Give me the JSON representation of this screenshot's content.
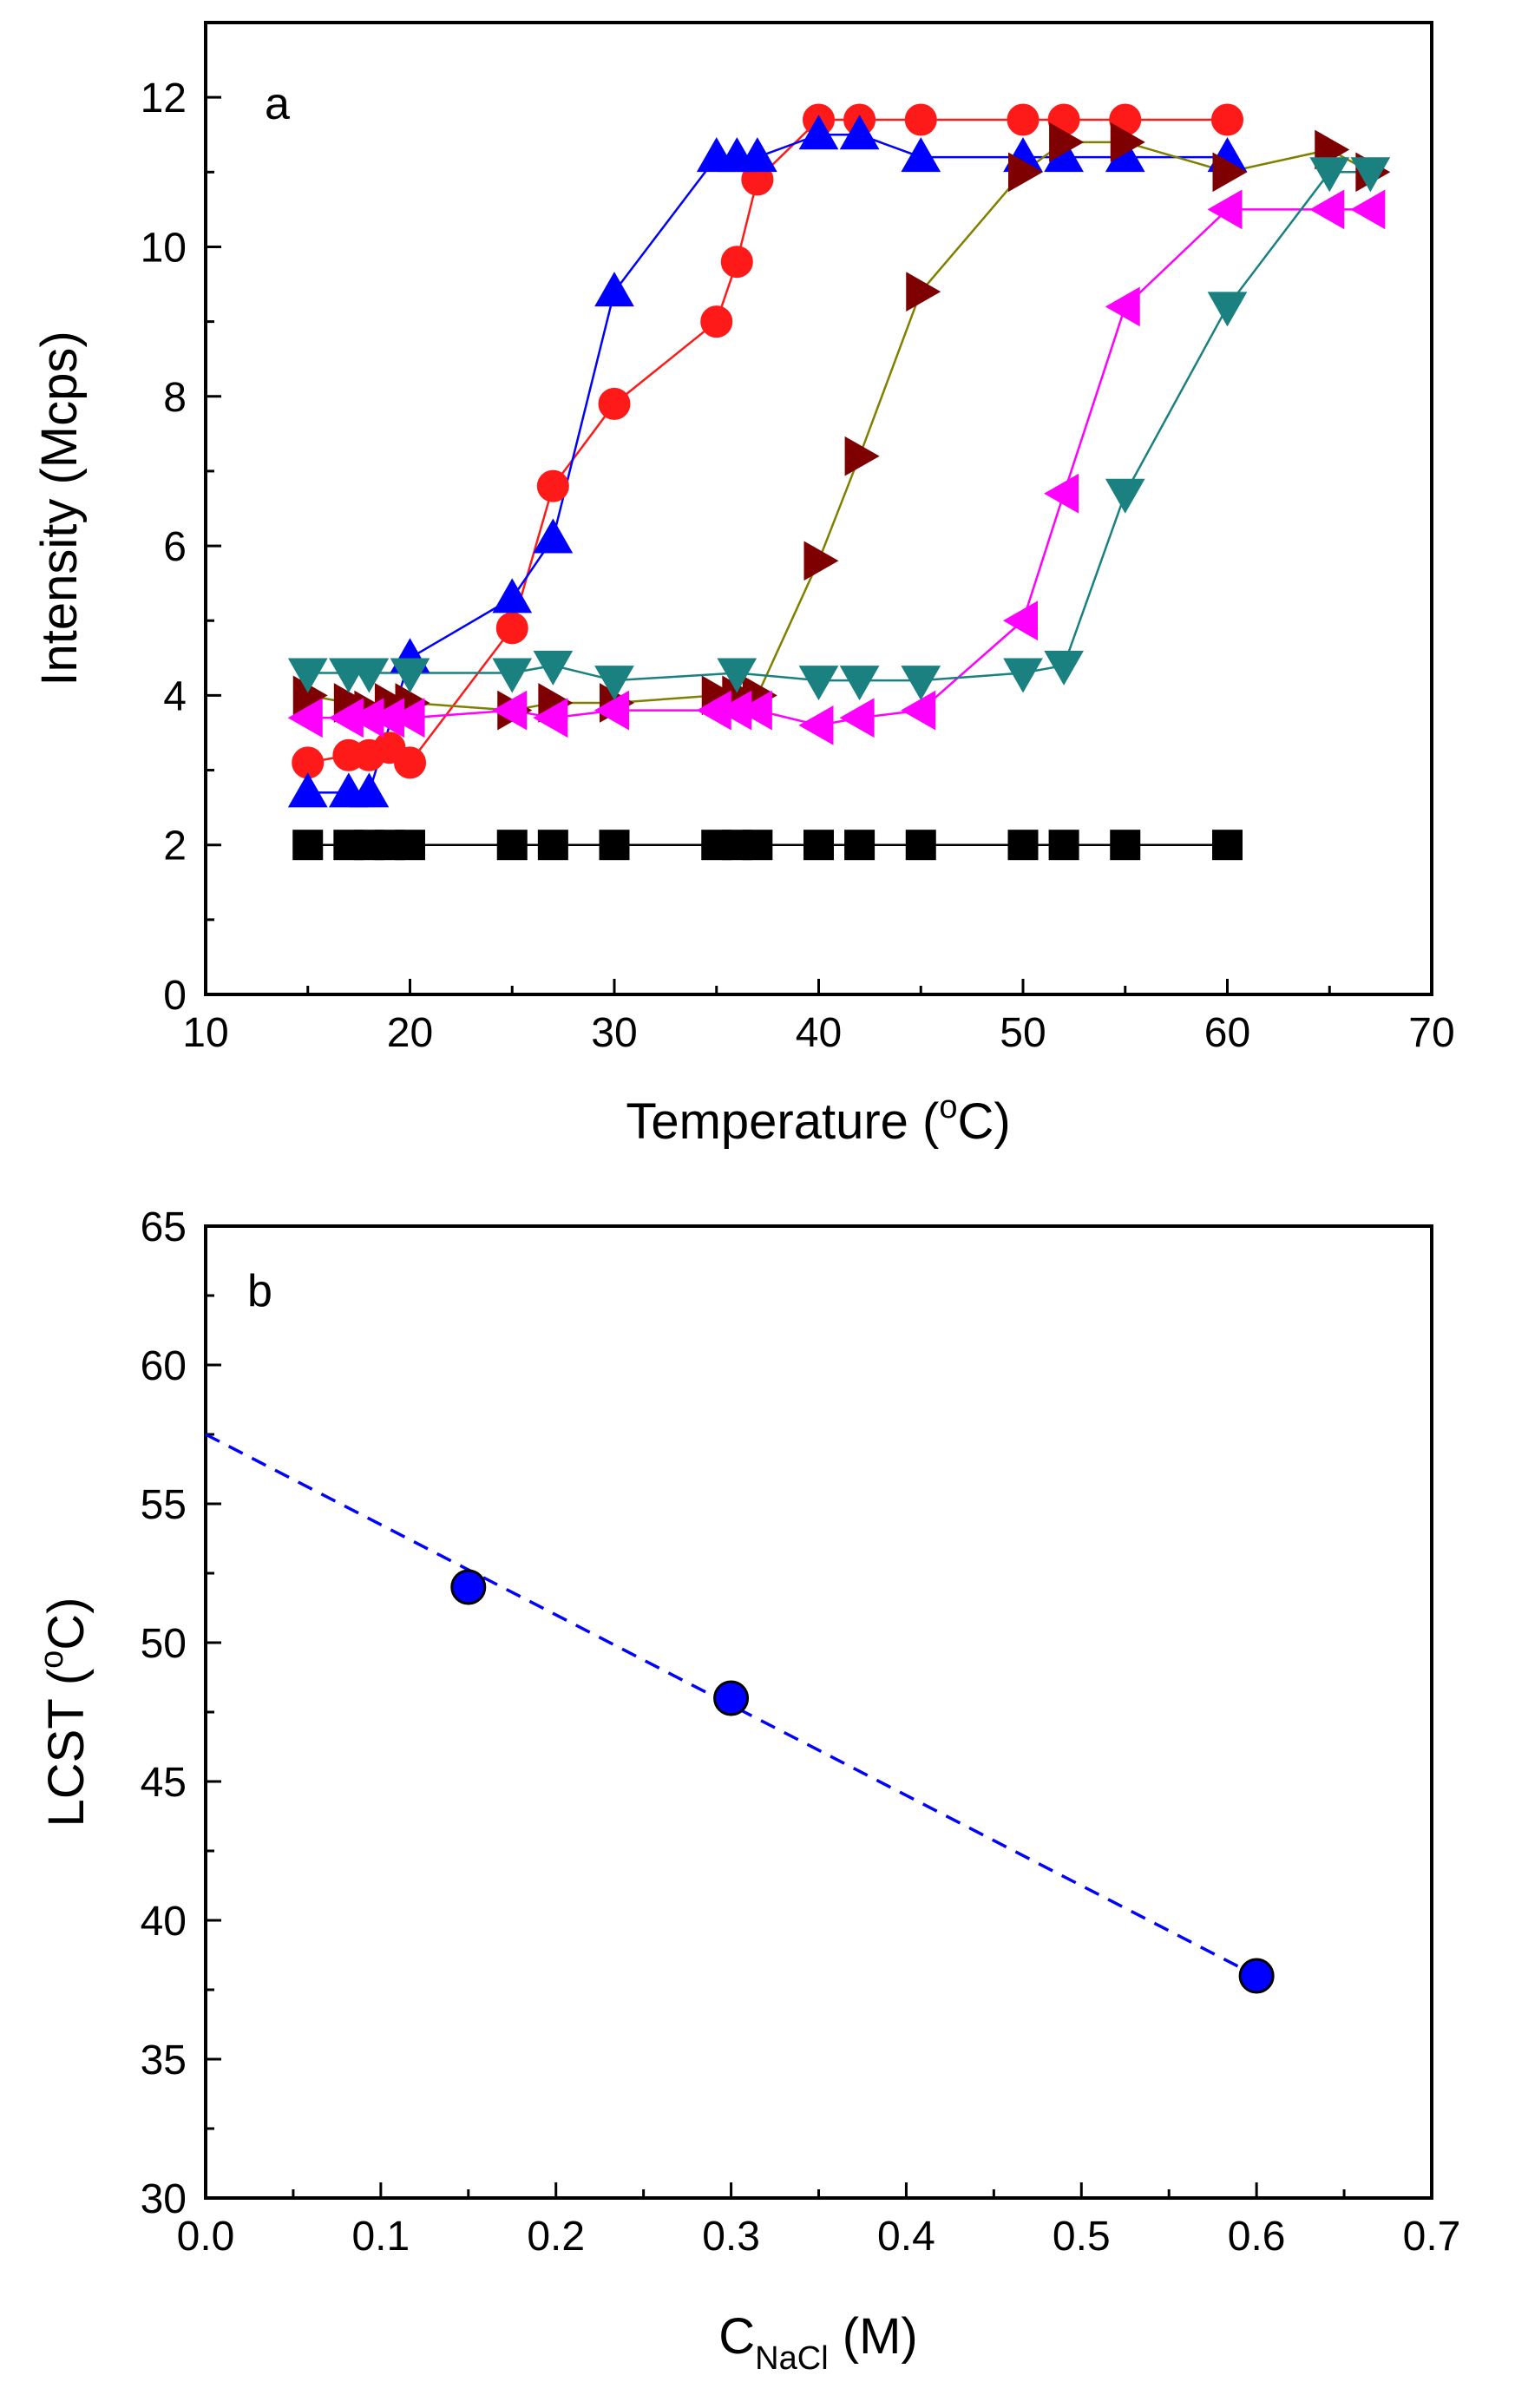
{
  "chart_data": [
    {
      "type": "line",
      "panel_label": "a",
      "title": "",
      "xlabel": "Temperature (",
      "xlabel_sup": "o",
      "xlabel_suffix": "C)",
      "ylabel": "Intensity (Mcps)",
      "xlim": [
        10,
        70
      ],
      "ylim": [
        0,
        13
      ],
      "xticks": [
        10,
        20,
        30,
        40,
        50,
        60,
        70
      ],
      "yticks": [
        0,
        2,
        4,
        6,
        8,
        10,
        12
      ],
      "grid": false,
      "legend": "none",
      "series": [
        {
          "marker": "square",
          "color": "#000000",
          "line_color": "#000000",
          "x": [
            15,
            17,
            18,
            19,
            20,
            25,
            27,
            30,
            35,
            36,
            37,
            40,
            42,
            45,
            50,
            52,
            55,
            60
          ],
          "y": [
            2,
            2,
            2,
            2,
            2,
            2,
            2,
            2,
            2,
            2,
            2,
            2,
            2,
            2,
            2,
            2,
            2,
            2
          ]
        },
        {
          "marker": "circle",
          "color": "#ff1a1a",
          "line_color": "#ff1a1a",
          "x": [
            15,
            17,
            18,
            19,
            20,
            25,
            27,
            30,
            35,
            36,
            37,
            40,
            42,
            45,
            50,
            52,
            55,
            60
          ],
          "y": [
            3.1,
            3.2,
            3.2,
            3.3,
            3.1,
            4.9,
            6.8,
            7.9,
            9.0,
            9.8,
            10.9,
            11.7,
            11.7,
            11.7,
            11.7,
            11.7,
            11.7,
            11.7
          ]
        },
        {
          "marker": "triangle-up",
          "color": "#0000ff",
          "line_color": "#0000ff",
          "x": [
            15,
            17,
            18,
            20,
            25,
            27,
            30,
            35,
            36,
            37,
            40,
            42,
            45,
            50,
            52,
            55,
            60
          ],
          "y": [
            2.7,
            2.7,
            2.7,
            4.5,
            5.3,
            6.1,
            9.4,
            11.2,
            11.2,
            11.2,
            11.5,
            11.5,
            11.2,
            11.2,
            11.2,
            11.2,
            11.2
          ]
        },
        {
          "marker": "triangle-right",
          "color": "#7f0000",
          "line_color": "#808000",
          "x": [
            15,
            17,
            18,
            19,
            20,
            25,
            27,
            30,
            35,
            36,
            37,
            40,
            42,
            45,
            50,
            52,
            55,
            60,
            65,
            67
          ],
          "y": [
            4.0,
            3.9,
            3.8,
            3.9,
            3.9,
            3.8,
            3.9,
            3.9,
            4.0,
            4.0,
            4.0,
            5.8,
            7.2,
            9.4,
            11.0,
            11.4,
            11.4,
            11.0,
            11.3,
            11.0
          ]
        },
        {
          "marker": "triangle-left",
          "color": "#ff00ff",
          "line_color": "#ff00ff",
          "x": [
            15,
            17,
            18,
            19,
            20,
            25,
            27,
            30,
            35,
            36,
            37,
            40,
            42,
            45,
            50,
            52,
            55,
            60,
            65,
            67
          ],
          "y": [
            3.7,
            3.7,
            3.7,
            3.7,
            3.7,
            3.8,
            3.7,
            3.8,
            3.8,
            3.8,
            3.8,
            3.6,
            3.7,
            3.8,
            5.0,
            6.7,
            9.2,
            10.5,
            10.5,
            10.5
          ]
        },
        {
          "marker": "triangle-down",
          "color": "#1a8080",
          "line_color": "#1a8080",
          "x": [
            15,
            17,
            18,
            20,
            25,
            27,
            30,
            36,
            40,
            42,
            45,
            50,
            52,
            55,
            60,
            65,
            67
          ],
          "y": [
            4.3,
            4.3,
            4.3,
            4.3,
            4.3,
            4.4,
            4.2,
            4.3,
            4.2,
            4.2,
            4.2,
            4.3,
            4.4,
            6.7,
            9.2,
            11.0,
            11.0
          ]
        }
      ]
    },
    {
      "type": "scatter",
      "panel_label": "b",
      "title": "",
      "xlabel": "C",
      "xlabel_sub": "NaCl",
      "xlabel_suffix": " (M)",
      "ylabel": "LCST (",
      "ylabel_sup": "o",
      "ylabel_suffix": "C)",
      "xlim": [
        0.0,
        0.7
      ],
      "ylim": [
        30,
        65
      ],
      "xticks": [
        0.0,
        0.1,
        0.2,
        0.3,
        0.4,
        0.5,
        0.6,
        0.7
      ],
      "xtick_labels": [
        "0.0",
        "0.1",
        "0.2",
        "0.3",
        "0.4",
        "0.5",
        "0.6",
        "0.7"
      ],
      "yticks": [
        30,
        35,
        40,
        45,
        50,
        55,
        60,
        65
      ],
      "grid": false,
      "legend": "none",
      "series": [
        {
          "marker": "circle",
          "color": "#0000ff",
          "x": [
            0.15,
            0.3,
            0.6
          ],
          "y": [
            52,
            48,
            38
          ]
        }
      ],
      "fit_line": {
        "style": "dashed",
        "color": "#0000ff",
        "x": [
          0.0,
          0.6
        ],
        "y": [
          57.5,
          38
        ]
      }
    }
  ]
}
